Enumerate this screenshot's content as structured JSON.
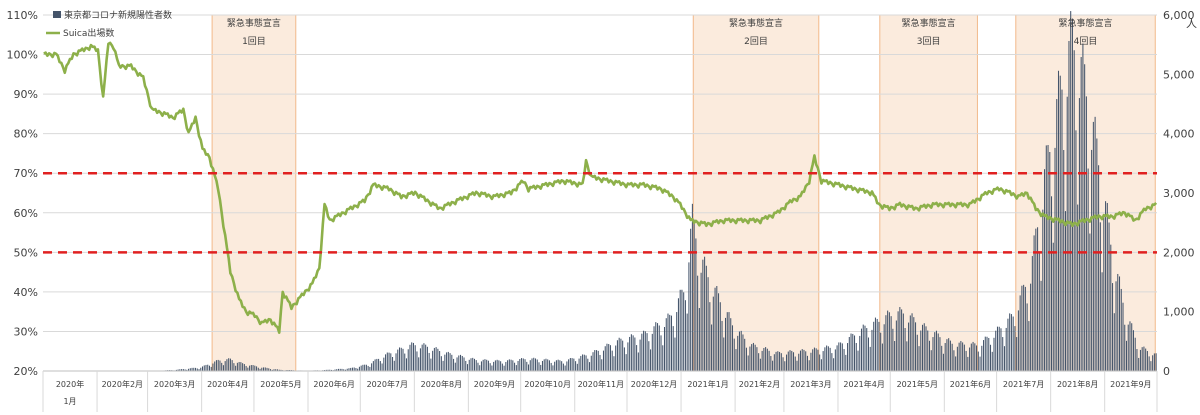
{
  "chart_data": {
    "type": "bar+line",
    "title": "",
    "legend": {
      "placement": "top-left",
      "entries": [
        {
          "label": "東京都コロナ新規陽性者数",
          "color": "#44546A",
          "kind": "bar"
        },
        {
          "label": "Suica出場数",
          "color": "#8DB04A",
          "kind": "line"
        }
      ]
    },
    "y_left": {
      "min": 20,
      "max": 110,
      "step": 10,
      "ticks": [
        "20%",
        "30%",
        "40%",
        "50%",
        "60%",
        "70%",
        "80%",
        "90%",
        "100%",
        "110%"
      ]
    },
    "y_right": {
      "min": 0,
      "max": 6000,
      "step": 1000,
      "ticks": [
        "0",
        "1,000",
        "2,000",
        "3,000",
        "4,000",
        "5,000",
        "6,000"
      ],
      "unit": "人"
    },
    "x_axis": {
      "start": "2020-01-01",
      "end": "2021-09-30",
      "labels": [
        {
          "month": "2020-01",
          "text": "2020年",
          "text2": "1月"
        },
        {
          "month": "2020-02",
          "text": "2020年2月"
        },
        {
          "month": "2020-03",
          "text": "2020年3月"
        },
        {
          "month": "2020-04",
          "text": "2020年4月"
        },
        {
          "month": "2020-05",
          "text": "2020年5月"
        },
        {
          "month": "2020-06",
          "text": "2020年6月"
        },
        {
          "month": "2020-07",
          "text": "2020年7月"
        },
        {
          "month": "2020-08",
          "text": "2020年8月"
        },
        {
          "month": "2020-09",
          "text": "2020年9月"
        },
        {
          "month": "2020-10",
          "text": "2020年10月"
        },
        {
          "month": "2020-11",
          "text": "2020年11月"
        },
        {
          "month": "2020-12",
          "text": "2020年12月"
        },
        {
          "month": "2021-01",
          "text": "2021年1月"
        },
        {
          "month": "2021-02",
          "text": "2021年2月"
        },
        {
          "month": "2021-03",
          "text": "2021年3月"
        },
        {
          "month": "2021-04",
          "text": "2021年4月"
        },
        {
          "month": "2021-05",
          "text": "2021年5月"
        },
        {
          "month": "2021-06",
          "text": "2021年6月"
        },
        {
          "month": "2021-07",
          "text": "2021年7月"
        },
        {
          "month": "2021-08",
          "text": "2021年8月"
        },
        {
          "month": "2021-09",
          "text": "2021年9月"
        }
      ]
    },
    "reference_lines": [
      {
        "axis": "left",
        "value": 70,
        "color": "#E02020",
        "style": "dashed"
      },
      {
        "axis": "left",
        "value": 50,
        "color": "#E02020",
        "style": "dashed"
      }
    ],
    "emergency_periods": [
      {
        "start": "2020-04-07",
        "end": "2020-05-25",
        "line1": "緊急事態宣言",
        "line2": "1回目"
      },
      {
        "start": "2021-01-08",
        "end": "2021-03-21",
        "line1": "緊急事態宣言",
        "line2": "2回目"
      },
      {
        "start": "2021-04-25",
        "end": "2021-06-20",
        "line1": "緊急事態宣言",
        "line2": "3回目"
      },
      {
        "start": "2021-07-12",
        "end": "2021-09-30",
        "line1": "緊急事態宣言",
        "line2": "4回目"
      }
    ],
    "cases_control_points": [
      [
        "2020-01-01",
        0
      ],
      [
        "2020-03-01",
        0
      ],
      [
        "2020-03-15",
        15
      ],
      [
        "2020-03-31",
        60
      ],
      [
        "2020-04-10",
        170
      ],
      [
        "2020-04-17",
        190
      ],
      [
        "2020-04-24",
        120
      ],
      [
        "2020-05-05",
        60
      ],
      [
        "2020-05-15",
        20
      ],
      [
        "2020-05-31",
        5
      ],
      [
        "2020-06-10",
        15
      ],
      [
        "2020-06-25",
        45
      ],
      [
        "2020-07-05",
        110
      ],
      [
        "2020-07-15",
        260
      ],
      [
        "2020-07-31",
        430
      ],
      [
        "2020-08-08",
        400
      ],
      [
        "2020-08-20",
        280
      ],
      [
        "2020-09-05",
        180
      ],
      [
        "2020-09-20",
        160
      ],
      [
        "2020-10-05",
        200
      ],
      [
        "2020-10-25",
        160
      ],
      [
        "2020-11-10",
        280
      ],
      [
        "2020-11-25",
        480
      ],
      [
        "2020-12-10",
        590
      ],
      [
        "2020-12-25",
        860
      ],
      [
        "2021-01-02",
        1300
      ],
      [
        "2021-01-07",
        2450
      ],
      [
        "2021-01-12",
        1800
      ],
      [
        "2021-01-20",
        1300
      ],
      [
        "2021-01-31",
        700
      ],
      [
        "2021-02-10",
        420
      ],
      [
        "2021-02-25",
        290
      ],
      [
        "2021-03-15",
        330
      ],
      [
        "2021-03-31",
        400
      ],
      [
        "2021-04-15",
        680
      ],
      [
        "2021-04-30",
        900
      ],
      [
        "2021-05-08",
        950
      ],
      [
        "2021-05-20",
        700
      ],
      [
        "2021-06-05",
        450
      ],
      [
        "2021-06-20",
        420
      ],
      [
        "2021-07-01",
        650
      ],
      [
        "2021-07-10",
        900
      ],
      [
        "2021-07-20",
        1600
      ],
      [
        "2021-07-28",
        3150
      ],
      [
        "2021-08-05",
        4400
      ],
      [
        "2021-08-13",
        5400
      ],
      [
        "2021-08-20",
        4700
      ],
      [
        "2021-08-28",
        3400
      ],
      [
        "2021-09-05",
        1900
      ],
      [
        "2021-09-12",
        1000
      ],
      [
        "2021-09-20",
        400
      ],
      [
        "2021-09-30",
        260
      ]
    ],
    "suica_control_points": [
      [
        "2020-01-01",
        100
      ],
      [
        "2020-01-08",
        100
      ],
      [
        "2020-01-13",
        96
      ],
      [
        "2020-01-18",
        100
      ],
      [
        "2020-01-28",
        102
      ],
      [
        "2020-02-01",
        101
      ],
      [
        "2020-02-04",
        89
      ],
      [
        "2020-02-07",
        103
      ],
      [
        "2020-02-10",
        102
      ],
      [
        "2020-02-13",
        97
      ],
      [
        "2020-02-20",
        97
      ],
      [
        "2020-02-27",
        94
      ],
      [
        "2020-03-03",
        86
      ],
      [
        "2020-03-10",
        85
      ],
      [
        "2020-03-15",
        84
      ],
      [
        "2020-03-21",
        86
      ],
      [
        "2020-03-24",
        80
      ],
      [
        "2020-03-28",
        84
      ],
      [
        "2020-04-01",
        76
      ],
      [
        "2020-04-05",
        74
      ],
      [
        "2020-04-10",
        66
      ],
      [
        "2020-04-14",
        54
      ],
      [
        "2020-04-17",
        45
      ],
      [
        "2020-04-22",
        38
      ],
      [
        "2020-04-26",
        35
      ],
      [
        "2020-05-01",
        34
      ],
      [
        "2020-05-05",
        32
      ],
      [
        "2020-05-10",
        33
      ],
      [
        "2020-05-15",
        30
      ],
      [
        "2020-05-17",
        40
      ],
      [
        "2020-05-22",
        36
      ],
      [
        "2020-05-28",
        39
      ],
      [
        "2020-06-03",
        42
      ],
      [
        "2020-06-07",
        46
      ],
      [
        "2020-06-10",
        62
      ],
      [
        "2020-06-13",
        58
      ],
      [
        "2020-06-25",
        61
      ],
      [
        "2020-07-03",
        63
      ],
      [
        "2020-07-08",
        67
      ],
      [
        "2020-07-17",
        66
      ],
      [
        "2020-07-24",
        64
      ],
      [
        "2020-08-01",
        65
      ],
      [
        "2020-08-08",
        63
      ],
      [
        "2020-08-15",
        61
      ],
      [
        "2020-08-25",
        63
      ],
      [
        "2020-09-05",
        65
      ],
      [
        "2020-09-15",
        64
      ],
      [
        "2020-09-25",
        65
      ],
      [
        "2020-10-02",
        68
      ],
      [
        "2020-10-05",
        66
      ],
      [
        "2020-10-15",
        67
      ],
      [
        "2020-10-25",
        68
      ],
      [
        "2020-11-05",
        67
      ],
      [
        "2020-11-07",
        73
      ],
      [
        "2020-11-10",
        69
      ],
      [
        "2020-11-20",
        68
      ],
      [
        "2020-12-01",
        67
      ],
      [
        "2020-12-10",
        67
      ],
      [
        "2020-12-20",
        66
      ],
      [
        "2020-12-27",
        64
      ],
      [
        "2020-12-31",
        62
      ],
      [
        "2021-01-06",
        58
      ],
      [
        "2021-01-15",
        57
      ],
      [
        "2021-01-25",
        58
      ],
      [
        "2021-02-05",
        58
      ],
      [
        "2021-02-15",
        58
      ],
      [
        "2021-02-25",
        60
      ],
      [
        "2021-03-05",
        63
      ],
      [
        "2021-03-10",
        64
      ],
      [
        "2021-03-15",
        68
      ],
      [
        "2021-03-18",
        74
      ],
      [
        "2021-03-22",
        68
      ],
      [
        "2021-04-01",
        67
      ],
      [
        "2021-04-10",
        66
      ],
      [
        "2021-04-20",
        65
      ],
      [
        "2021-04-24",
        62
      ],
      [
        "2021-04-30",
        61
      ],
      [
        "2021-05-06",
        62
      ],
      [
        "2021-05-15",
        61
      ],
      [
        "2021-05-25",
        62
      ],
      [
        "2021-06-05",
        62
      ],
      [
        "2021-06-15",
        62
      ],
      [
        "2021-06-25",
        65
      ],
      [
        "2021-07-02",
        66
      ],
      [
        "2021-07-08",
        65
      ],
      [
        "2021-07-13",
        64
      ],
      [
        "2021-07-18",
        65
      ],
      [
        "2021-07-23",
        61
      ],
      [
        "2021-07-28",
        59
      ],
      [
        "2021-08-05",
        58
      ],
      [
        "2021-08-13",
        57
      ],
      [
        "2021-08-20",
        58
      ],
      [
        "2021-08-28",
        59
      ],
      [
        "2021-09-05",
        59
      ],
      [
        "2021-09-12",
        60
      ],
      [
        "2021-09-18",
        58
      ],
      [
        "2021-09-24",
        61
      ],
      [
        "2021-09-30",
        62
      ]
    ]
  }
}
